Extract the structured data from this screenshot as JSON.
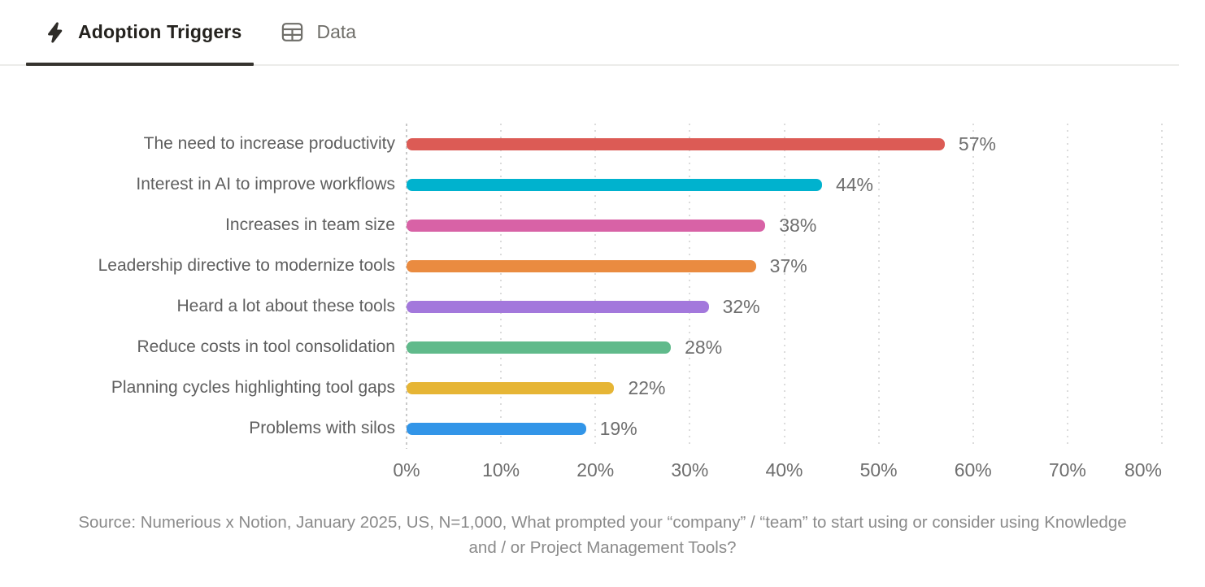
{
  "tabs": [
    {
      "label": "Adoption Triggers",
      "icon": "lightning-bolt-icon",
      "active": true
    },
    {
      "label": "Data",
      "icon": "table-icon",
      "active": false
    }
  ],
  "chart_data": {
    "type": "bar",
    "orientation": "horizontal",
    "title": "",
    "xlabel": "",
    "ylabel": "",
    "xlim": [
      0,
      80
    ],
    "grid": "dotted-vertical",
    "legend": "none",
    "categories": [
      "The need to increase productivity",
      "Interest in AI to improve workflows",
      "Increases in team size",
      "Leadership directive to modernize tools",
      "Heard a lot about these tools",
      "Reduce costs in tool consolidation",
      "Planning cycles highlighting tool gaps",
      "Problems with silos"
    ],
    "values": [
      57,
      44,
      38,
      37,
      32,
      28,
      22,
      19
    ],
    "value_labels": [
      "57%",
      "44%",
      "38%",
      "37%",
      "32%",
      "28%",
      "22%",
      "19%"
    ],
    "bar_colors": [
      "#DC5B55",
      "#00B2CE",
      "#D862A6",
      "#EA8B40",
      "#A378DC",
      "#60BA8B",
      "#E6B535",
      "#3295E8"
    ],
    "x_tick_labels": [
      "0%",
      "10%",
      "20%",
      "30%",
      "40%",
      "50%",
      "60%",
      "70%",
      "80%"
    ]
  },
  "source_note": "Source: Numerious x Notion, January 2025, US, N=1,000, What prompted your “company” / “team” to start using or consider using Knowledge and / or Project Management Tools?",
  "colors": {
    "active_tab_text": "#24221e",
    "inactive_tab_text": "#6f6e69",
    "tab_underline": "#35332e",
    "tabbar_border": "#ececea",
    "category_label": "#5f5f5f",
    "tick_label": "#6e6e6e",
    "gridline": "#dcdcdc",
    "source_text": "#8b8b8b"
  }
}
